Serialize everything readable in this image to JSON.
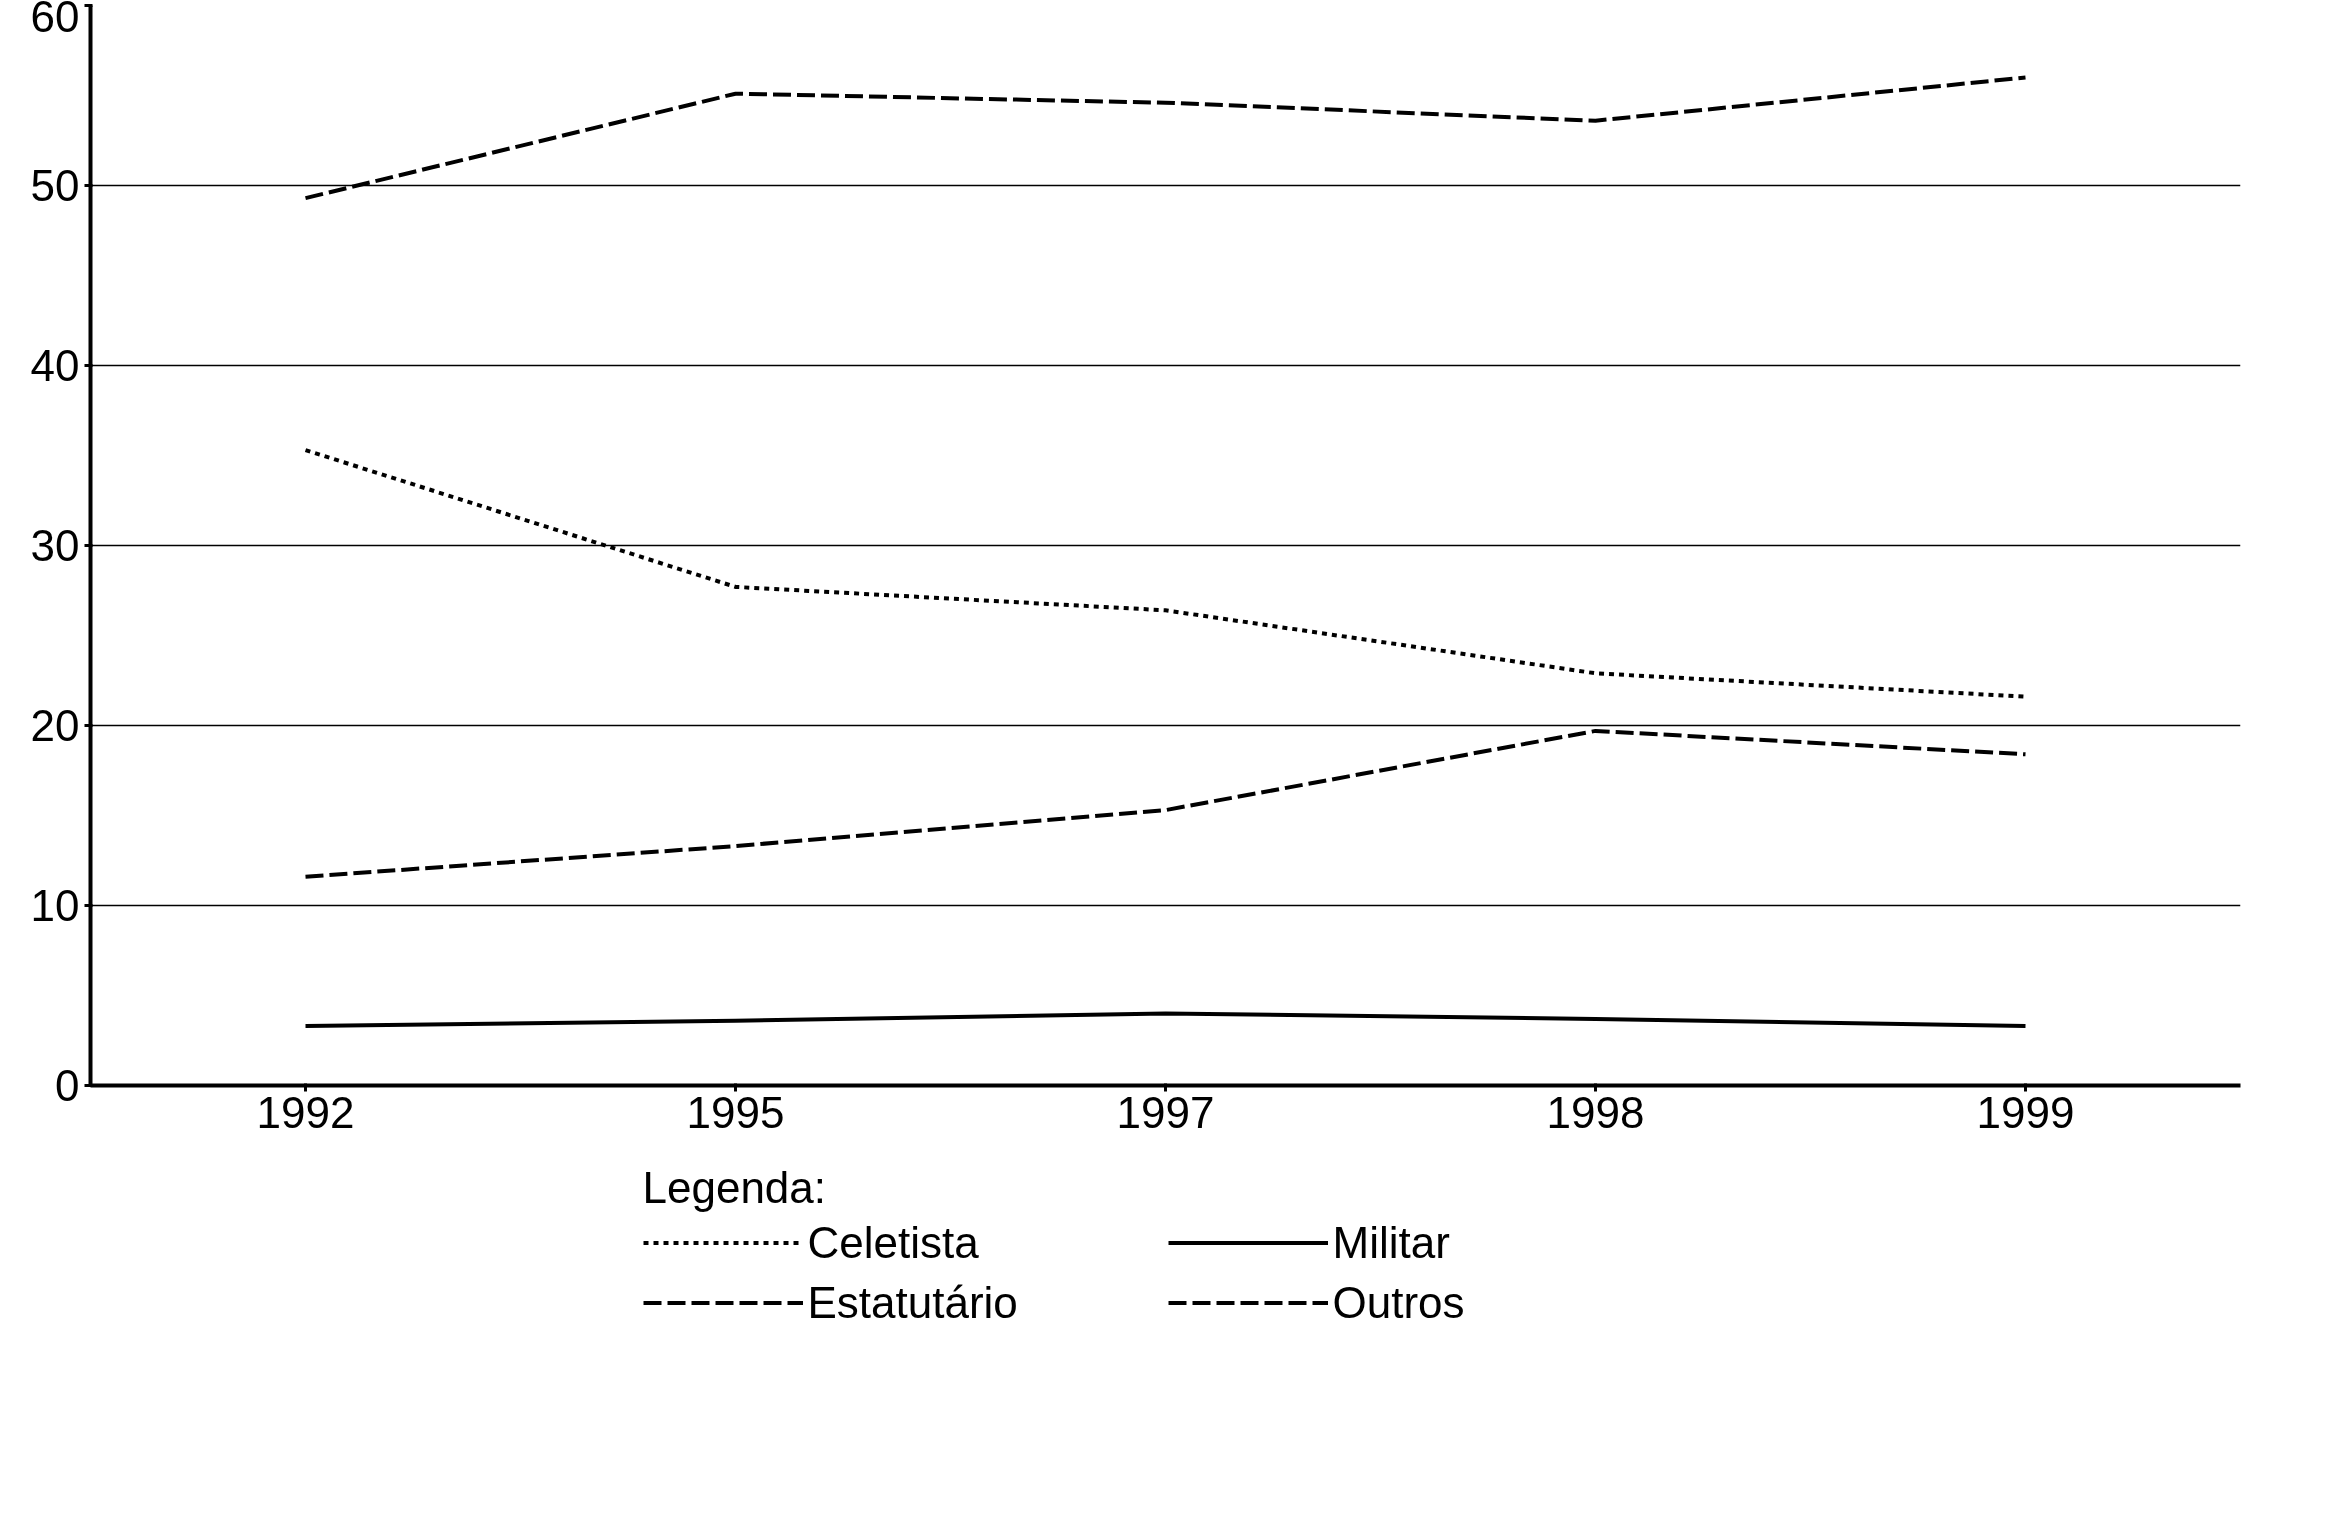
{
  "chart_data": {
    "type": "line",
    "categories": [
      "1992",
      "1995",
      "1997",
      "1998",
      "1999"
    ],
    "ylim": [
      0,
      60
    ],
    "yticks": [
      0,
      10,
      20,
      30,
      40,
      50,
      60
    ],
    "grid": "y",
    "legend": "bottom",
    "legend_title": "Legenda:",
    "marker": "none",
    "series": [
      {
        "name": "Celetista",
        "color": "#000000",
        "line_style": "dotted",
        "values": [
          35.3,
          27.7,
          26.4,
          22.9,
          21.6
        ]
      },
      {
        "name": "Estatutário",
        "color": "#000000",
        "line_style": "dashed",
        "values": [
          49.3,
          55.1,
          54.6,
          53.6,
          56.0
        ]
      },
      {
        "name": "Militar",
        "color": "#000000",
        "line_style": "solid",
        "values": [
          3.3,
          3.6,
          4.0,
          3.7,
          3.3
        ]
      },
      {
        "name": "Outros",
        "color": "#000000",
        "line_style": "dashed",
        "values": [
          11.6,
          13.3,
          15.3,
          19.7,
          18.4
        ]
      }
    ]
  }
}
